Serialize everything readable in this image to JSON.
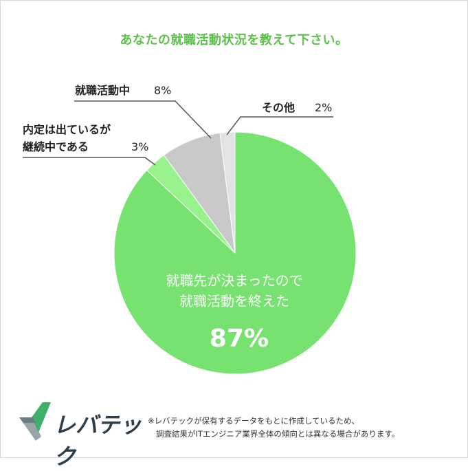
{
  "title": "あなたの就職活動状況を教えて下さい。",
  "colors": {
    "title": "#5cc14a",
    "main": "#77e270",
    "light_green": "#99f38c",
    "gray": "#c9c9c9",
    "light_gray": "#e3e3e3",
    "leader": "#555555"
  },
  "chart_data": {
    "type": "pie",
    "title": "あなたの就職活動状況を教えて下さい。",
    "slices": [
      {
        "label_lines": [
          "就職先が決まったので",
          "就職活動を終えた"
        ],
        "value": 87,
        "value_text": "87%",
        "color": "#77e270"
      },
      {
        "label_lines": [
          "内定は出ているが",
          "継続中である"
        ],
        "value": 3,
        "value_text": "3%",
        "color": "#99f38c"
      },
      {
        "label_lines": [
          "就職活動中"
        ],
        "value": 8,
        "value_text": "8%",
        "color": "#c9c9c9"
      },
      {
        "label_lines": [
          "その他"
        ],
        "value": 2,
        "value_text": "2%",
        "color": "#e3e3e3"
      }
    ]
  },
  "logo": {
    "text": "レバテック",
    "icon": "levtech-chevron-logo"
  },
  "footnote": {
    "line1": "※レバテックが保有するデータをもとに作成しているため、",
    "line2": "調査結果がITエンジニア業界全体の傾向とは異なる場合があります。"
  }
}
